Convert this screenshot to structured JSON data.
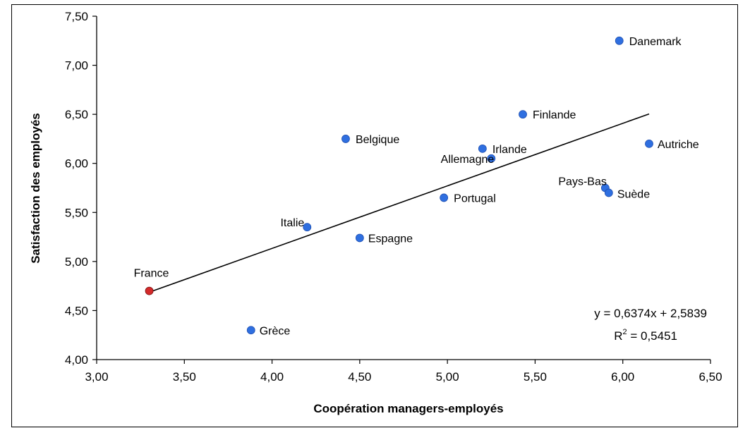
{
  "chart_data": {
    "type": "scatter",
    "xlabel": "Coopération managers-employés",
    "ylabel": "Satisfaction des employés",
    "xlim": [
      3.0,
      6.5
    ],
    "ylim": [
      4.0,
      7.5
    ],
    "x_ticks": [
      "3,00",
      "3,50",
      "4,00",
      "4,50",
      "5,00",
      "5,50",
      "6,00",
      "6,50"
    ],
    "y_ticks": [
      "4,00",
      "4,50",
      "5,00",
      "5,50",
      "6,00",
      "6,50",
      "7,00",
      "7,50"
    ],
    "grid": false,
    "points": [
      {
        "label": "Danemark",
        "x": 5.98,
        "y": 7.25,
        "color": "#2f6fe0"
      },
      {
        "label": "Finlande",
        "x": 5.43,
        "y": 6.5,
        "color": "#2f6fe0"
      },
      {
        "label": "Belgique",
        "x": 4.42,
        "y": 6.25,
        "color": "#2f6fe0"
      },
      {
        "label": "Irlande",
        "x": 5.2,
        "y": 6.15,
        "color": "#2f6fe0"
      },
      {
        "label": "Allemagne",
        "x": 5.25,
        "y": 6.05,
        "color": "#2f6fe0"
      },
      {
        "label": "Autriche",
        "x": 6.15,
        "y": 6.2,
        "color": "#2f6fe0"
      },
      {
        "label": "Pays-Bas",
        "x": 5.9,
        "y": 5.75,
        "color": "#2f6fe0"
      },
      {
        "label": "Suède",
        "x": 5.92,
        "y": 5.7,
        "color": "#2f6fe0"
      },
      {
        "label": "Portugal",
        "x": 4.98,
        "y": 5.65,
        "color": "#2f6fe0"
      },
      {
        "label": "Italie",
        "x": 4.2,
        "y": 5.35,
        "color": "#2f6fe0"
      },
      {
        "label": "Espagne",
        "x": 4.5,
        "y": 5.24,
        "color": "#2f6fe0"
      },
      {
        "label": "France",
        "x": 3.3,
        "y": 4.7,
        "color": "#d42a2a"
      },
      {
        "label": "Grèce",
        "x": 3.88,
        "y": 4.3,
        "color": "#2f6fe0"
      }
    ],
    "trendline": {
      "slope": 0.6374,
      "intercept": 2.5839,
      "x_range": [
        3.3,
        6.15
      ],
      "equation": "y = 0,6374x + 2,5839",
      "r2_prefix": "R",
      "r2_sup": "2",
      "r2_value": " = 0,5451"
    }
  }
}
